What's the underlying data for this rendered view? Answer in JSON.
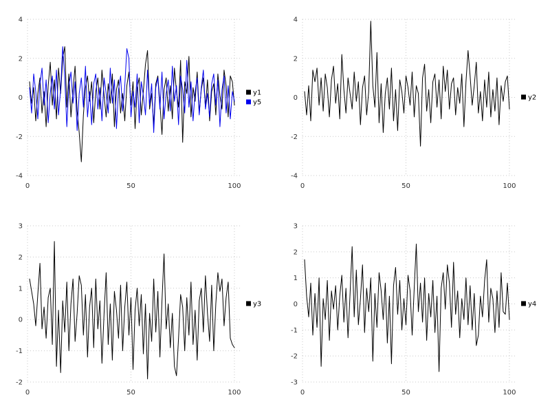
{
  "style": {
    "background": "#ffffff",
    "grid_color": "#c8c8c8",
    "tick_label_color": "#303030",
    "series_black": "#000000",
    "series_blue": "#0000ee"
  },
  "chart_data": [
    {
      "id": "plot-top-left",
      "type": "line",
      "title": "",
      "xlabel": "",
      "ylabel": "",
      "x_start": 1,
      "xlim": [
        0,
        103
      ],
      "x_ticks": [
        0,
        50,
        100
      ],
      "ylim": [
        -4,
        4
      ],
      "y_ticks": [
        -4,
        -2,
        0,
        2,
        4
      ],
      "grid": true,
      "legend_position": "right",
      "series": [
        {
          "name": "y1",
          "color": "#000000",
          "values": [
            0.8,
            -0.3,
            0.5,
            -1.2,
            0.2,
            1.0,
            -0.8,
            0.3,
            -1.5,
            0.6,
            1.8,
            -0.4,
            0.9,
            -1.1,
            1.5,
            0.2,
            2.0,
            2.6,
            -0.5,
            1.2,
            -1.0,
            0.4,
            1.6,
            -0.7,
            -1.8,
            -3.3,
            -0.9,
            0.5,
            1.1,
            -0.2,
            0.8,
            -1.3,
            0.3,
            1.0,
            -0.6,
            1.4,
            0.1,
            -1.0,
            0.7,
            -0.3,
            1.2,
            -1.5,
            0.4,
            0.9,
            -0.8,
            0.2,
            -1.2,
            0.6,
            1.3,
            -0.4,
            0.8,
            -1.6,
            0.5,
            1.0,
            -0.9,
            0.3,
            1.7,
            2.4,
            -0.6,
            0.2,
            -1.4,
            0.7,
            1.1,
            -0.3,
            -1.9,
            0.4,
            1.0,
            -0.7,
            0.6,
            -1.1,
            1.5,
            0.3,
            -0.5,
            1.9,
            -2.3,
            0.8,
            0.2,
            2.1,
            -1.0,
            0.5,
            -0.2,
            1.3,
            -0.8,
            0.4,
            1.0,
            -0.5,
            0.9,
            -1.2,
            0.3,
            0.7,
            -0.9,
            1.2,
            0.1,
            -0.6,
            1.4,
            0.6,
            -1.0,
            1.1,
            0.8,
            -0.4
          ]
        },
        {
          "name": "y5",
          "color": "#0000ee",
          "values": [
            0.5,
            -0.8,
            1.2,
            0.3,
            -1.1,
            0.7,
            1.5,
            -0.4,
            0.9,
            -1.3,
            0.2,
            1.1,
            -0.6,
            1.4,
            -0.9,
            0.4,
            2.6,
            1.0,
            -1.5,
            0.6,
            1.3,
            -0.3,
            0.8,
            -1.7,
            0.2,
            1.0,
            -0.5,
            1.6,
            -1.0,
            0.3,
            -1.4,
            0.7,
            1.2,
            -0.6,
            0.5,
            -1.2,
            1.0,
            0.2,
            -0.8,
            1.5,
            -0.3,
            0.9,
            -1.6,
            0.4,
            1.1,
            -0.7,
            0.6,
            2.5,
            2.0,
            -1.0,
            0.3,
            -0.5,
            1.2,
            -1.3,
            0.8,
            0.1,
            -0.9,
            1.4,
            -0.4,
            0.7,
            -1.8,
            0.5,
            1.0,
            -0.6,
            1.3,
            -1.1,
            0.2,
            0.9,
            -0.7,
            1.6,
            -0.2,
            0.6,
            -1.4,
            1.1,
            0.4,
            -0.8,
            1.9,
            -0.5,
            0.8,
            -1.2,
            0.3,
            1.0,
            -0.9,
            0.5,
            1.4,
            -0.6,
            0.2,
            -1.0,
            0.7,
            1.2,
            -0.4,
            0.9,
            -1.5,
            0.4,
            1.1,
            -0.8,
            0.6,
            -1.1,
            0.3,
            -0.2
          ]
        }
      ]
    },
    {
      "id": "plot-top-right",
      "type": "line",
      "title": "",
      "xlabel": "",
      "ylabel": "",
      "x_start": 1,
      "xlim": [
        0,
        103
      ],
      "x_ticks": [
        0,
        50,
        100
      ],
      "ylim": [
        -4,
        4
      ],
      "y_ticks": [
        -4,
        -2,
        0,
        2,
        4
      ],
      "grid": true,
      "legend_position": "right",
      "series": [
        {
          "name": "y2",
          "color": "#000000",
          "values": [
            0.3,
            -0.9,
            0.6,
            -1.2,
            1.4,
            0.8,
            1.5,
            -0.4,
            1.0,
            -0.7,
            1.2,
            0.5,
            -1.0,
            0.9,
            1.6,
            -0.3,
            0.7,
            -1.1,
            2.2,
            0.4,
            -0.8,
            1.0,
            0.2,
            -0.6,
            1.3,
            -0.2,
            0.8,
            -1.4,
            0.5,
            1.1,
            -0.9,
            0.3,
            3.9,
            0.6,
            -0.5,
            2.3,
            -1.3,
            0.7,
            -1.8,
            0.2,
            1.0,
            -0.6,
            1.5,
            -1.2,
            0.4,
            -1.7,
            0.9,
            0.3,
            -0.8,
            1.1,
            0.5,
            -0.4,
            1.3,
            -1.0,
            0.6,
            0.2,
            -2.5,
            1.0,
            1.7,
            -0.7,
            0.4,
            -1.3,
            0.8,
            1.2,
            -0.5,
            0.9,
            -1.1,
            1.6,
            0.3,
            1.4,
            -0.6,
            0.7,
            1.0,
            -0.9,
            0.5,
            -0.3,
            1.2,
            -1.5,
            0.8,
            2.4,
            1.1,
            -0.4,
            0.6,
            1.8,
            -0.8,
            0.3,
            -1.2,
            0.9,
            -0.5,
            1.3,
            -1.0,
            0.4,
            -0.7,
            1.0,
            -1.4,
            0.6,
            -0.2,
            0.8,
            1.1,
            -0.6
          ]
        }
      ]
    },
    {
      "id": "plot-bottom-left",
      "type": "line",
      "title": "",
      "xlabel": "",
      "ylabel": "",
      "x_start": 1,
      "xlim": [
        0,
        103
      ],
      "x_ticks": [
        0,
        50,
        100
      ],
      "ylim": [
        -2,
        3
      ],
      "y_ticks": [
        -2,
        -1,
        0,
        1,
        2,
        3
      ],
      "grid": true,
      "legend_position": "right",
      "series": [
        {
          "name": "y3",
          "color": "#000000",
          "values": [
            1.3,
            0.9,
            0.5,
            -0.2,
            0.8,
            1.8,
            -0.3,
            0.4,
            -0.6,
            0.7,
            1.0,
            -0.8,
            2.5,
            -1.5,
            0.3,
            -1.7,
            0.6,
            -0.4,
            1.2,
            -1.0,
            0.5,
            1.3,
            -0.7,
            0.2,
            1.4,
            1.1,
            -0.5,
            0.8,
            -1.2,
            0.4,
            1.0,
            -0.9,
            1.3,
            -0.3,
            0.6,
            -1.4,
            0.2,
            1.5,
            -0.8,
            0.5,
            -1.3,
            0.9,
            0.3,
            -0.6,
            1.1,
            -1.0,
            0.4,
            1.2,
            -0.5,
            0.7,
            -1.6,
            0.3,
            1.0,
            -0.2,
            0.8,
            -1.1,
            0.5,
            -1.9,
            0.2,
            -0.7,
            1.3,
            -0.4,
            0.9,
            -1.2,
            0.6,
            2.1,
            -0.3,
            0.5,
            -0.9,
            0.2,
            -1.5,
            -1.8,
            -0.6,
            0.8,
            0.4,
            -1.0,
            0.7,
            -0.5,
            1.2,
            -0.8,
            0.3,
            -1.3,
            0.6,
            1.0,
            -0.4,
            1.4,
            0.2,
            -0.7,
            1.1,
            -1.0,
            0.5,
            1.5,
            0.9,
            1.3,
            -0.2,
            0.7,
            1.2,
            -0.6,
            -0.8,
            -0.9
          ]
        }
      ]
    },
    {
      "id": "plot-bottom-right",
      "type": "line",
      "title": "",
      "xlabel": "",
      "ylabel": "",
      "x_start": 1,
      "xlim": [
        0,
        103
      ],
      "x_ticks": [
        0,
        50,
        100
      ],
      "ylim": [
        -3,
        3
      ],
      "y_ticks": [
        -3,
        -2,
        -1,
        0,
        1,
        2,
        3
      ],
      "grid": true,
      "legend_position": "right",
      "series": [
        {
          "name": "y4",
          "color": "#000000",
          "values": [
            1.7,
            0.3,
            -0.5,
            0.8,
            -1.2,
            0.4,
            -0.9,
            1.0,
            -2.4,
            0.2,
            -0.6,
            0.9,
            -1.4,
            0.5,
            -0.2,
            0.7,
            -1.0,
            0.3,
            1.1,
            -0.7,
            0.6,
            -1.3,
            0.4,
            2.2,
            -0.5,
            1.3,
            -0.8,
            0.2,
            1.5,
            -1.1,
            0.6,
            -0.3,
            1.0,
            -2.2,
            0.4,
            -0.9,
            1.2,
            0.5,
            -0.6,
            0.8,
            -1.5,
            0.3,
            -2.3,
            0.7,
            1.4,
            -0.4,
            0.9,
            -1.0,
            0.2,
            -0.8,
            1.1,
            0.5,
            -1.2,
            0.6,
            2.3,
            -0.3,
            0.8,
            -0.7,
            1.0,
            -1.4,
            0.4,
            -0.5,
            0.9,
            -1.1,
            0.3,
            -2.6,
            0.6,
            1.2,
            -0.2,
            1.5,
            0.8,
            -0.9,
            1.6,
            -0.4,
            0.5,
            -1.3,
            0.2,
            -0.6,
            1.0,
            -0.8,
            0.7,
            -1.0,
            0.4,
            -1.6,
            -1.2,
            0.3,
            -0.5,
            0.9,
            1.7,
            -0.7,
            0.6,
            0.2,
            -1.1,
            0.5,
            -0.9,
            1.2,
            -0.3,
            -0.4,
            0.8,
            -0.6
          ]
        }
      ]
    }
  ]
}
